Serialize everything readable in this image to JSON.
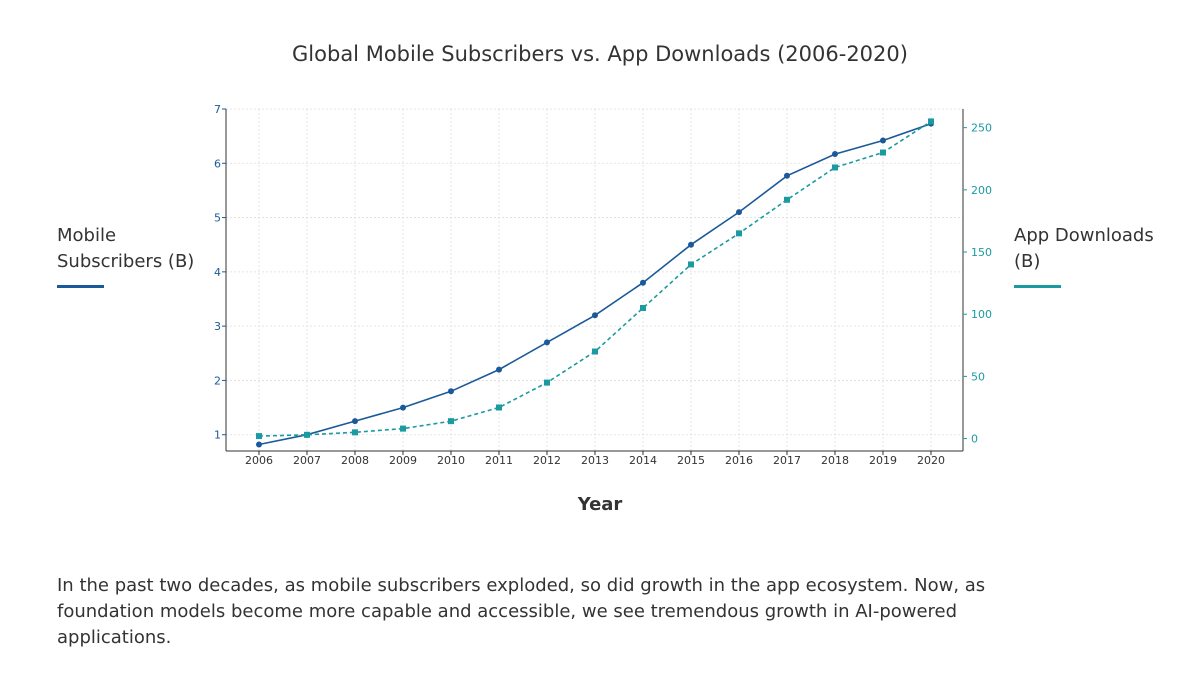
{
  "chart_data": {
    "type": "line",
    "title": "Global Mobile Subscribers vs. App Downloads (2006-2020)",
    "xlabel": "Year",
    "ylabel_left": "Mobile Subscribers (B)",
    "ylabel_right": "App Downloads (B)",
    "x": [
      "2006",
      "2007",
      "2008",
      "2009",
      "2010",
      "2011",
      "2012",
      "2013",
      "2014",
      "2015",
      "2016",
      "2017",
      "2018",
      "2019",
      "2020"
    ],
    "ylim_left": [
      0.7,
      7
    ],
    "yticks_left": [
      1,
      2,
      3,
      4,
      5,
      6,
      7
    ],
    "ylim_right": [
      -10,
      265
    ],
    "yticks_right": [
      0,
      50,
      100,
      150,
      200,
      250
    ],
    "grid": true,
    "series": [
      {
        "name": "Mobile Subscribers (B)",
        "axis": "left",
        "color": "#1b5a9a",
        "style": "solid",
        "marker": "circle",
        "values": [
          0.82,
          1.0,
          1.25,
          1.5,
          1.8,
          2.2,
          2.7,
          3.2,
          3.8,
          4.5,
          5.1,
          5.77,
          6.17,
          6.42,
          6.73
        ]
      },
      {
        "name": "App Downloads (B)",
        "axis": "right",
        "color": "#1b9aa2",
        "style": "dashed",
        "marker": "square",
        "values": [
          2,
          3,
          5,
          8,
          14,
          25,
          45,
          70,
          105,
          140,
          165,
          192,
          218,
          230,
          255
        ]
      }
    ]
  },
  "labels": {
    "left_axis_title": "Mobile Subscribers (B)",
    "right_axis_title": "App Downloads (B)",
    "caption": "In the past two decades, as mobile subscribers exploded, so did growth in the app ecosystem. Now, as foundation models become more capable and accessible, we see tremendous growth in AI-powered applications."
  }
}
